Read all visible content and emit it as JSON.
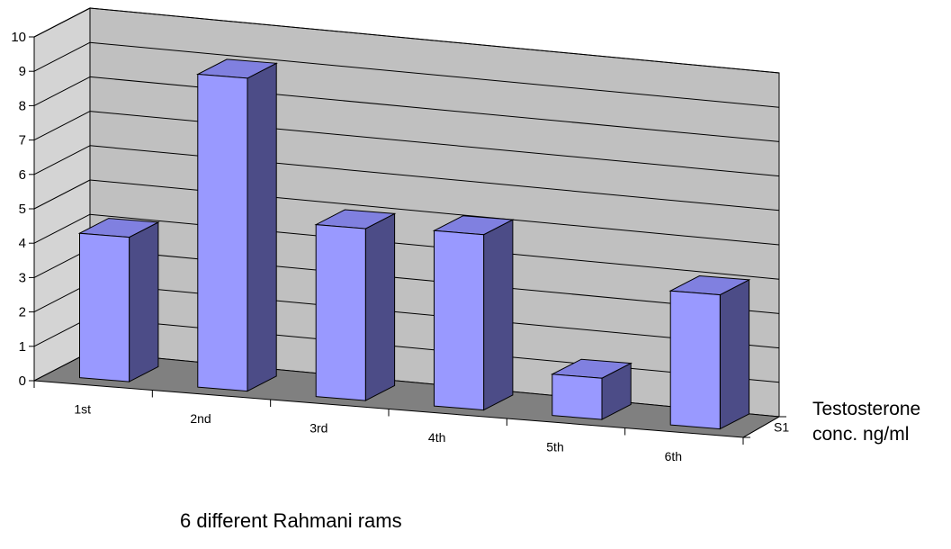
{
  "chart_data": {
    "type": "bar",
    "style": "3d",
    "categories": [
      "1st",
      "2nd",
      "3rd",
      "4th",
      "5th",
      "6th"
    ],
    "series": [
      {
        "name": "S1",
        "values": [
          4.2,
          9.1,
          5.0,
          5.1,
          1.2,
          3.9
        ]
      }
    ],
    "ylim": [
      0,
      10
    ],
    "yticks": [
      "0",
      "1",
      "2",
      "3",
      "4",
      "5",
      "6",
      "7",
      "8",
      "9",
      "10"
    ],
    "xlabel": "6 different Rahmani rams",
    "zlabel_line1": "Testosterone",
    "zlabel_line2": "conc. ng/ml",
    "grid": true,
    "colors": {
      "bar_front": "#9999ff",
      "bar_side": "#4c4c87",
      "bar_top": "#8080e0",
      "back_wall": "#c0c0c0",
      "side_wall": "#d4d4d4",
      "floor": "#808080"
    }
  }
}
